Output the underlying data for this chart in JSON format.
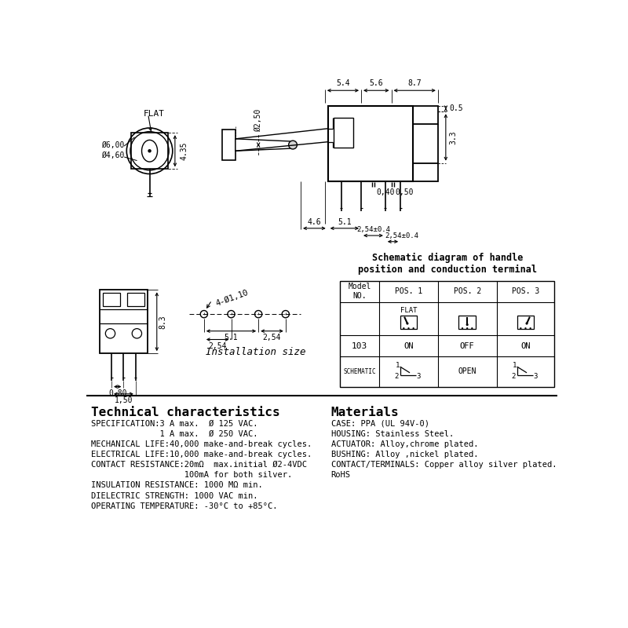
{
  "bg_color": "#ffffff",
  "line_color": "#000000",
  "tech_title": "Technical characteristics",
  "tech_lines": [
    "SPECIFICATION:3 A max.  Ø 125 VAC.",
    "              1 A max.  Ø 250 VAC.",
    "MECHANICAL LIFE:40,000 make-and-break cycles.",
    "ELECTRICAL LIFE:10,000 make-and-break cycles.",
    "CONTACT RESISTANCE:20mΩ  max.initial Ø2-4VDC",
    "                   100mA for both silver.",
    "INSULATION RESISTANCE: 1000 MΩ min.",
    "DIELECTRIC STRENGTH: 1000 VAC min.",
    "OPERATING TEMPERATURE: -30°C to +85°C."
  ],
  "mat_title": "Materials",
  "mat_lines": [
    "CASE: PPA (UL 94V-0)",
    "HOUSING: Stainless Steel.",
    "ACTUATOR: Alloy,chrome plated.",
    "BUSHING: Alloy ,nickel plated.",
    "CONTACT/TERMINALS: Copper alloy silver plated.",
    "RoHS"
  ],
  "schematic_title": "Schematic diagram of handle\nposition and conduction terminal",
  "install_label": "Installation size"
}
